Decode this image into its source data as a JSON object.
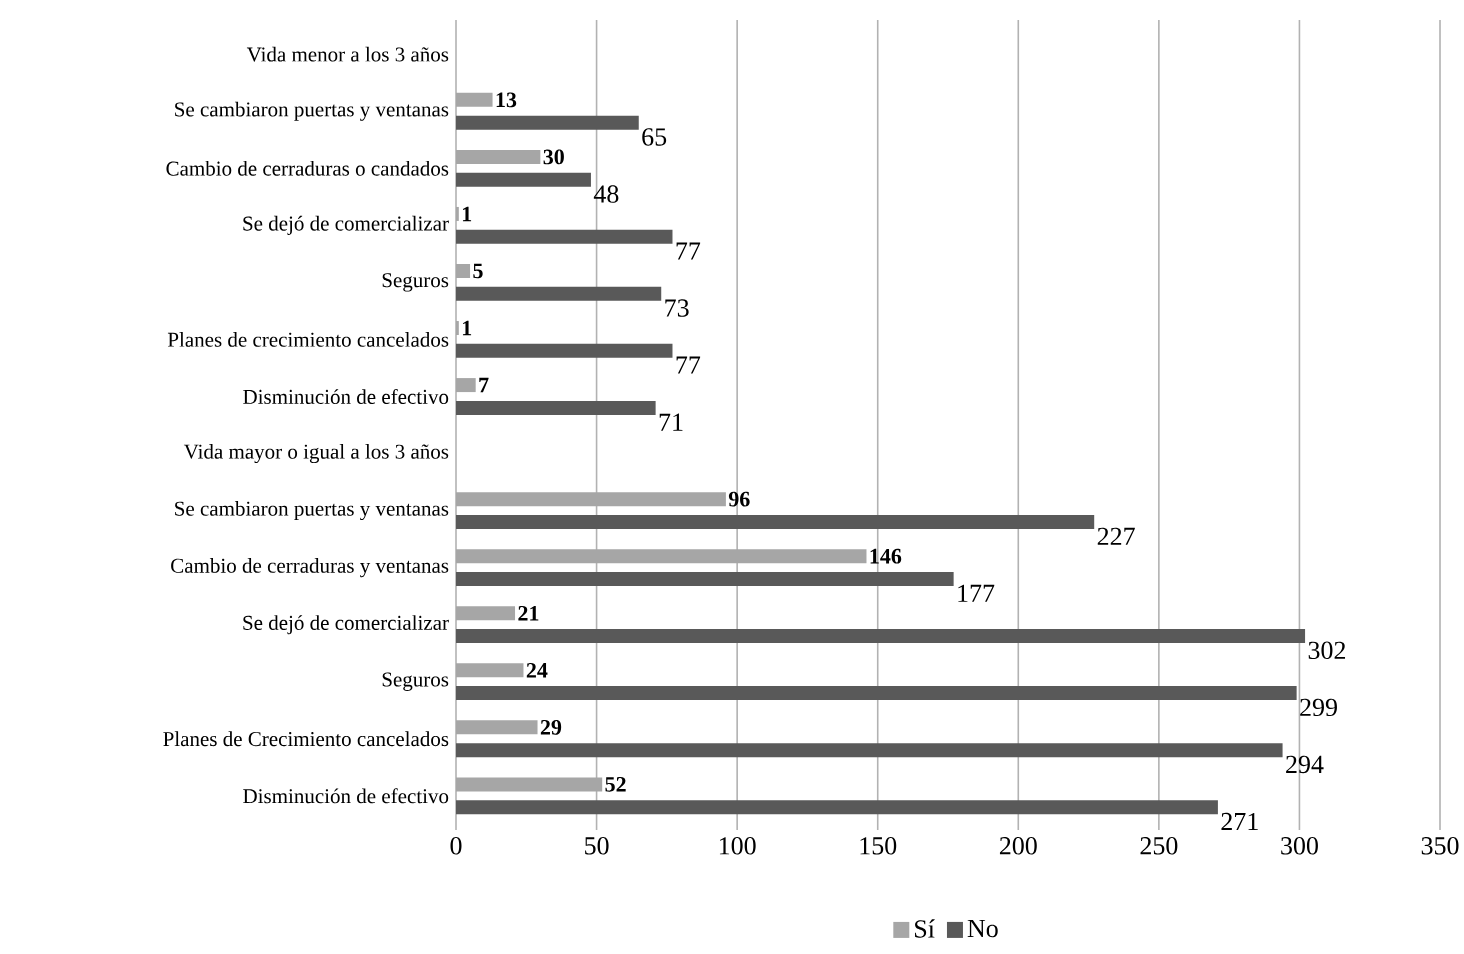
{
  "chart_data": {
    "type": "bar",
    "orientation": "horizontal",
    "categories": [
      "Vida menor a los 3 años",
      "Se cambiaron puertas y ventanas",
      "Cambio de cerraduras o candados",
      "Se dejó de comercializar",
      "Seguros",
      "Planes de crecimiento cancelados",
      "Disminución de efectivo",
      "Vida mayor o igual a los 3 años",
      "Se cambiaron puertas y ventanas",
      "Cambio de cerraduras y ventanas",
      "Se dejó de comercializar",
      "Seguros",
      "Planes de Crecimiento cancelados",
      "Disminución de efectivo"
    ],
    "series": [
      {
        "name": "Sí",
        "color": "#a6a6a6",
        "values": [
          null,
          13,
          30,
          1,
          5,
          1,
          7,
          null,
          96,
          146,
          21,
          24,
          29,
          52
        ]
      },
      {
        "name": "No",
        "color": "#595959",
        "values": [
          null,
          65,
          48,
          77,
          73,
          77,
          71,
          null,
          227,
          177,
          302,
          299,
          294,
          271
        ]
      }
    ],
    "xlim": [
      0,
      350
    ],
    "xticks": [
      0,
      50,
      100,
      150,
      200,
      250,
      300,
      350
    ],
    "grid": "x",
    "legend": "bottom",
    "data_labels": true
  }
}
